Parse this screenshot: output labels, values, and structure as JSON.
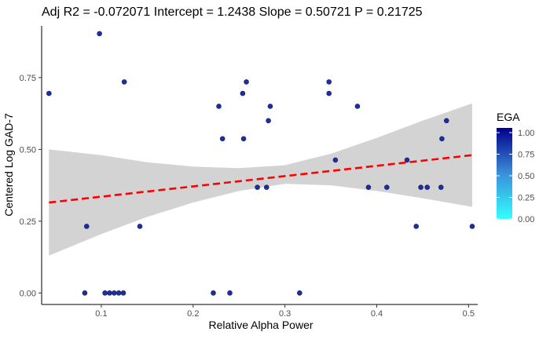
{
  "chart_data": {
    "type": "scatter",
    "title": "Adj R2 =  -0.072071 Intercept = 1.2438  Slope = 0.50721  P = 0.21725",
    "xlabel": "Relative Alpha Power",
    "ylabel": "Centered Log GAD-7",
    "xlim": [
      0.035,
      0.51
    ],
    "ylim": [
      -0.04,
      0.93
    ],
    "x_ticks": [
      0.1,
      0.2,
      0.3,
      0.4,
      0.5
    ],
    "x_tick_labels": [
      "0.1",
      "0.2",
      "0.3",
      "0.4",
      "0.5"
    ],
    "y_ticks": [
      0.0,
      0.25,
      0.5,
      0.75
    ],
    "y_tick_labels": [
      "0.00",
      "0.25",
      "0.50",
      "0.75"
    ],
    "grid": false,
    "legend": {
      "title": "EGA",
      "placement": "right",
      "scale_min": 0,
      "scale_max": 1,
      "ticks": [
        "1.00",
        "0.75",
        "0.50",
        "0.25",
        "0.00"
      ],
      "color_low": "#33ffff",
      "color_high": "#00008b"
    },
    "point_color": "#1e2f9a",
    "fit_line": {
      "color": "#ff0000",
      "style": "dashed",
      "x": [
        0.043,
        0.504
      ],
      "y": [
        0.315,
        0.48
      ]
    },
    "confidence_band": {
      "color": "#d3d3d3",
      "x": [
        0.043,
        0.1,
        0.15,
        0.2,
        0.25,
        0.3,
        0.35,
        0.4,
        0.45,
        0.504
      ],
      "lower": [
        0.13,
        0.205,
        0.265,
        0.315,
        0.355,
        0.38,
        0.375,
        0.355,
        0.33,
        0.3
      ],
      "upper": [
        0.5,
        0.48,
        0.455,
        0.44,
        0.435,
        0.445,
        0.485,
        0.54,
        0.6,
        0.66
      ]
    },
    "points": [
      {
        "x": 0.043,
        "y": 0.695
      },
      {
        "x": 0.082,
        "y": 0.0
      },
      {
        "x": 0.084,
        "y": 0.232
      },
      {
        "x": 0.098,
        "y": 0.903
      },
      {
        "x": 0.104,
        "y": 0.0
      },
      {
        "x": 0.109,
        "y": 0.0
      },
      {
        "x": 0.114,
        "y": 0.0
      },
      {
        "x": 0.119,
        "y": 0.0
      },
      {
        "x": 0.124,
        "y": 0.0
      },
      {
        "x": 0.125,
        "y": 0.735
      },
      {
        "x": 0.142,
        "y": 0.232
      },
      {
        "x": 0.222,
        "y": 0.0
      },
      {
        "x": 0.228,
        "y": 0.65
      },
      {
        "x": 0.232,
        "y": 0.537
      },
      {
        "x": 0.24,
        "y": 0.0
      },
      {
        "x": 0.254,
        "y": 0.695
      },
      {
        "x": 0.255,
        "y": 0.537
      },
      {
        "x": 0.258,
        "y": 0.735
      },
      {
        "x": 0.27,
        "y": 0.368
      },
      {
        "x": 0.28,
        "y": 0.368
      },
      {
        "x": 0.282,
        "y": 0.6
      },
      {
        "x": 0.284,
        "y": 0.65
      },
      {
        "x": 0.316,
        "y": 0.0
      },
      {
        "x": 0.348,
        "y": 0.735
      },
      {
        "x": 0.348,
        "y": 0.695
      },
      {
        "x": 0.355,
        "y": 0.463
      },
      {
        "x": 0.379,
        "y": 0.65
      },
      {
        "x": 0.391,
        "y": 0.368
      },
      {
        "x": 0.411,
        "y": 0.368
      },
      {
        "x": 0.433,
        "y": 0.463
      },
      {
        "x": 0.443,
        "y": 0.232
      },
      {
        "x": 0.448,
        "y": 0.368
      },
      {
        "x": 0.455,
        "y": 0.368
      },
      {
        "x": 0.47,
        "y": 0.368
      },
      {
        "x": 0.471,
        "y": 0.537
      },
      {
        "x": 0.476,
        "y": 0.6
      },
      {
        "x": 0.504,
        "y": 0.232
      }
    ]
  }
}
